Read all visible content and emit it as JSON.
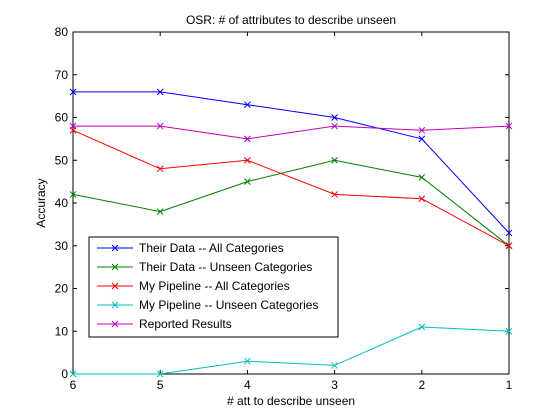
{
  "chart_data": {
    "type": "line",
    "title": "OSR: # of attributes to describe unseen",
    "xlabel": "# att to describe unseen",
    "ylabel": "Accuracy",
    "x": [
      6,
      5,
      4,
      3,
      2,
      1
    ],
    "x_tick_labels": [
      "6",
      "5",
      "4",
      "3",
      "2",
      "1"
    ],
    "xlim": [
      6,
      1
    ],
    "ylim": [
      0,
      80
    ],
    "y_ticks": [
      0,
      10,
      20,
      30,
      40,
      50,
      60,
      70,
      80
    ],
    "y_tick_labels": [
      "0",
      "10",
      "20",
      "30",
      "40",
      "50",
      "60",
      "70",
      "80"
    ],
    "grid": false,
    "legend_position": "bottom-left",
    "marker": "x",
    "series": [
      {
        "name": "Their Data -- All Categories",
        "color": "#0000ff",
        "values": [
          66,
          66,
          63,
          60,
          55,
          33
        ]
      },
      {
        "name": "Their Data -- Unseen Categories",
        "color": "#008000",
        "values": [
          42,
          38,
          45,
          50,
          46,
          30
        ]
      },
      {
        "name": "My Pipeline -- All Categories",
        "color": "#ff0000",
        "values": [
          57,
          48,
          50,
          42,
          41,
          30
        ]
      },
      {
        "name": "My Pipeline -- Unseen Categories",
        "color": "#00bfbf",
        "values": [
          0,
          0,
          3,
          2,
          11,
          10
        ]
      },
      {
        "name": "Reported Results",
        "color": "#bf00bf",
        "values": [
          58,
          58,
          55,
          58,
          57,
          58
        ]
      }
    ]
  }
}
